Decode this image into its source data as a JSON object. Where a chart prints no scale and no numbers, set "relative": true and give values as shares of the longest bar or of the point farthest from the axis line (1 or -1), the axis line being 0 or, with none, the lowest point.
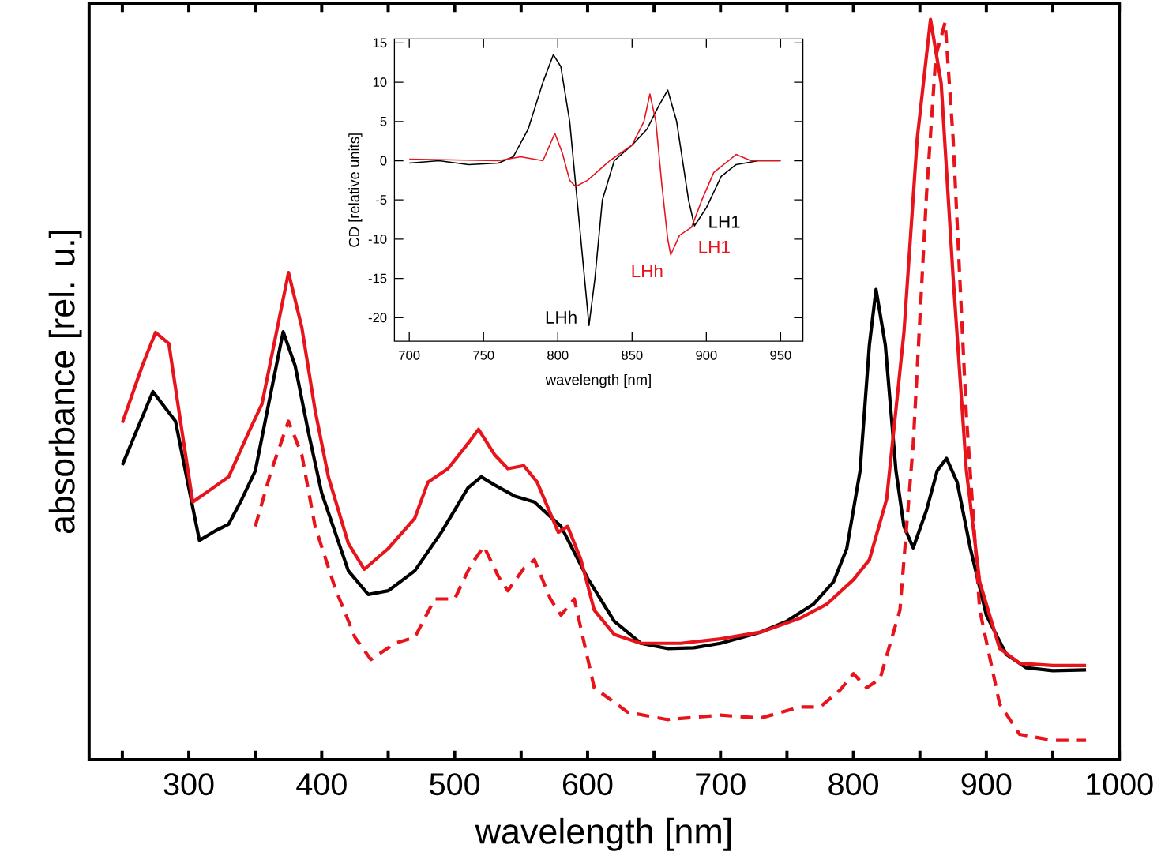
{
  "chart_data": [
    {
      "type": "line",
      "relative": true,
      "xlabel": "wavelength [nm]",
      "ylabel": "absorbance [rel. u.]",
      "xlim": [
        225,
        1000
      ],
      "xticks": [
        {
          "value": 250,
          "label": null
        },
        300,
        {
          "value": 350,
          "label": null
        },
        400,
        {
          "value": 450,
          "label": null
        },
        500,
        {
          "value": 550,
          "label": null
        },
        600,
        {
          "value": 650,
          "label": null
        },
        700,
        {
          "value": 750,
          "label": null
        },
        800,
        {
          "value": 850,
          "label": null
        },
        900,
        {
          "value": 950,
          "label": null
        },
        1000
      ],
      "series": [
        {
          "color": "#000000",
          "line_style": "solid",
          "x": [
            250,
            273,
            290,
            300,
            308,
            320,
            330,
            340,
            350,
            360,
            371,
            380,
            390,
            400,
            420,
            435,
            450,
            470,
            490,
            510,
            520,
            530,
            545,
            560,
            580,
            600,
            620,
            640,
            660,
            680,
            700,
            730,
            750,
            770,
            785,
            795,
            805,
            812,
            817,
            824,
            832,
            838,
            845,
            855,
            863,
            870,
            878,
            888,
            900,
            915,
            930,
            950,
            975
          ],
          "values": [
            0.398,
            0.497,
            0.457,
            0.367,
            0.296,
            0.309,
            0.318,
            0.352,
            0.39,
            0.48,
            0.578,
            0.532,
            0.442,
            0.36,
            0.255,
            0.223,
            0.228,
            0.255,
            0.307,
            0.367,
            0.382,
            0.371,
            0.356,
            0.348,
            0.315,
            0.245,
            0.187,
            0.157,
            0.15,
            0.151,
            0.157,
            0.172,
            0.187,
            0.21,
            0.24,
            0.285,
            0.39,
            0.56,
            0.635,
            0.56,
            0.39,
            0.315,
            0.286,
            0.337,
            0.39,
            0.407,
            0.375,
            0.285,
            0.195,
            0.142,
            0.124,
            0.12,
            0.121
          ]
        },
        {
          "color": "#e8141c",
          "line_style": "solid",
          "x": [
            250,
            265,
            275,
            285,
            295,
            303,
            315,
            330,
            345,
            355,
            365,
            375,
            385,
            395,
            405,
            420,
            432,
            450,
            470,
            480,
            495,
            510,
            518,
            530,
            540,
            552,
            562,
            578,
            585,
            595,
            605,
            620,
            640,
            670,
            700,
            730,
            760,
            780,
            800,
            812,
            825,
            838,
            848,
            858,
            866,
            875,
            885,
            895,
            910,
            925,
            950,
            975
          ],
          "values": [
            0.455,
            0.532,
            0.577,
            0.562,
            0.442,
            0.348,
            0.363,
            0.382,
            0.442,
            0.48,
            0.569,
            0.658,
            0.584,
            0.472,
            0.382,
            0.292,
            0.257,
            0.285,
            0.326,
            0.375,
            0.393,
            0.427,
            0.446,
            0.412,
            0.393,
            0.397,
            0.375,
            0.307,
            0.315,
            0.27,
            0.202,
            0.169,
            0.157,
            0.157,
            0.163,
            0.172,
            0.191,
            0.21,
            0.243,
            0.27,
            0.352,
            0.577,
            0.839,
            1.0,
            0.914,
            0.652,
            0.39,
            0.24,
            0.15,
            0.13,
            0.127,
            0.127
          ]
        },
        {
          "color": "#e8141c",
          "line_style": "dashed",
          "x": [
            350,
            362,
            375,
            385,
            395,
            410,
            425,
            437,
            455,
            470,
            485,
            500,
            512,
            522,
            533,
            540,
            552,
            560,
            572,
            580,
            590,
            605,
            630,
            660,
            700,
            730,
            760,
            775,
            790,
            800,
            810,
            820,
            835,
            845,
            855,
            862,
            869,
            875,
            885,
            895,
            910,
            925,
            950,
            975
          ],
          "values": [
            0.315,
            0.39,
            0.457,
            0.412,
            0.315,
            0.232,
            0.165,
            0.135,
            0.157,
            0.165,
            0.217,
            0.217,
            0.262,
            0.288,
            0.247,
            0.228,
            0.258,
            0.27,
            0.217,
            0.195,
            0.217,
            0.097,
            0.064,
            0.054,
            0.06,
            0.056,
            0.071,
            0.071,
            0.094,
            0.116,
            0.097,
            0.109,
            0.202,
            0.427,
            0.764,
            0.951,
            0.996,
            0.839,
            0.464,
            0.202,
            0.075,
            0.034,
            0.026,
            0.026
          ]
        }
      ]
    },
    {
      "type": "line",
      "xlabel": "wavelength [nm]",
      "ylabel": "CD [relative units]",
      "xlim": [
        690,
        965
      ],
      "ylim": [
        -23,
        15.5
      ],
      "xticks": [
        700,
        750,
        800,
        850,
        900,
        950
      ],
      "yticks": [
        -20,
        -15,
        -10,
        -5,
        0,
        5,
        10,
        15
      ],
      "series": [
        {
          "color": "#000000",
          "x": [
            700,
            720,
            740,
            760,
            770,
            780,
            790,
            797,
            802,
            808,
            813,
            818,
            821,
            825,
            830,
            838,
            850,
            860,
            868,
            874,
            880,
            888,
            892,
            900,
            910,
            920,
            935,
            950
          ],
          "values": [
            -0.3,
            0,
            -0.5,
            -0.3,
            0.5,
            4,
            10,
            13.5,
            12,
            5,
            -5,
            -15,
            -21,
            -15,
            -5,
            0,
            2,
            4,
            7,
            9,
            5,
            -5,
            -8.3,
            -6,
            -2,
            -0.5,
            0,
            0
          ]
        },
        {
          "color": "#e8141c",
          "x": [
            700,
            760,
            775,
            790,
            798,
            803,
            808,
            812,
            820,
            835,
            850,
            858,
            862,
            866,
            870,
            874,
            876,
            882,
            890,
            897,
            905,
            915,
            920,
            930,
            950
          ],
          "values": [
            0.2,
            0,
            0.5,
            0,
            3.5,
            1,
            -2.5,
            -3.3,
            -2.5,
            0,
            2,
            5,
            8.5,
            5,
            -3,
            -10,
            -12,
            -9.5,
            -8.5,
            -5,
            -1.5,
            0,
            0.8,
            0,
            0
          ]
        }
      ],
      "annotations": [
        {
          "text": "LHh",
          "x": 821,
          "y": -21
        },
        {
          "text": "LHh",
          "x": 876,
          "y": -12
        },
        {
          "text": "LH1",
          "x": 888,
          "y": -9
        },
        {
          "text": "LH1",
          "x": 892,
          "y": -8.3
        }
      ]
    }
  ]
}
